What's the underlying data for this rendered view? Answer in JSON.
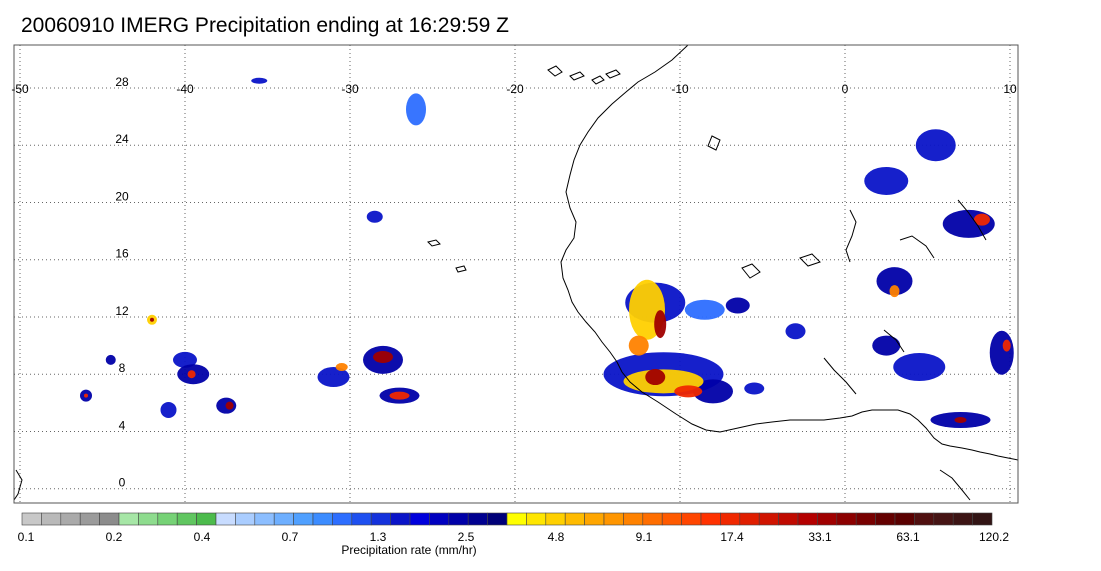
{
  "title": "20060910 IMERG Precipitation ending at 16:29:59 Z",
  "map": {
    "lon_range": [
      -50,
      10
    ],
    "lat_range": [
      -1,
      31
    ],
    "lon_ticks": [
      "-50",
      "-40",
      "-30",
      "-20",
      "-10",
      "0",
      "10"
    ],
    "lat_ticks": [
      "0",
      "4",
      "8",
      "12",
      "16",
      "20",
      "24",
      "28"
    ],
    "lon_tick_values": [
      -50,
      -40,
      -30,
      -20,
      -10,
      0,
      10
    ],
    "lat_tick_values": [
      0,
      4,
      8,
      12,
      16,
      20,
      24,
      28
    ],
    "gridlines": true,
    "coastline_color": "#000000"
  },
  "colorbar": {
    "title": "Precipitation rate (mm/hr)",
    "labels": [
      "0.1",
      "0.2",
      "0.4",
      "0.7",
      "1.3",
      "2.5",
      "4.8",
      "9.1",
      "17.4",
      "33.1",
      "63.1",
      "120.2"
    ],
    "colors": [
      "#c8c8c8",
      "#b9b9b9",
      "#aaaaaa",
      "#9b9b9b",
      "#8c8c8c",
      "#a6e6a6",
      "#8edc8e",
      "#76d276",
      "#60c660",
      "#4cbb4c",
      "#c8dcff",
      "#aacdff",
      "#8cbeff",
      "#6eafff",
      "#50a0ff",
      "#3c8cff",
      "#2d6eff",
      "#1e50f0",
      "#1432dc",
      "#0a14c8",
      "#0000dc",
      "#0000c0",
      "#0000a8",
      "#000090",
      "#000078",
      "#ffff00",
      "#ffe600",
      "#ffd000",
      "#ffbb00",
      "#ffa600",
      "#ff9600",
      "#ff8200",
      "#ff6e00",
      "#ff5a00",
      "#ff4600",
      "#ff3200",
      "#f02800",
      "#e01e00",
      "#d01400",
      "#c00a00",
      "#b40000",
      "#a00000",
      "#8c0000",
      "#780000",
      "#640000",
      "#5a0000",
      "#501010",
      "#461414",
      "#3c1414",
      "#321414"
    ]
  },
  "precip_cells": [
    {
      "lon": -11.5,
      "lat": 13.0,
      "rx": 30,
      "ry": 20,
      "level": 4
    },
    {
      "lon": -12.0,
      "lat": 12.5,
      "rx": 18,
      "ry": 30,
      "level": 6
    },
    {
      "lon": -11.2,
      "lat": 11.5,
      "rx": 6,
      "ry": 14,
      "level": 9
    },
    {
      "lon": -12.5,
      "lat": 10.0,
      "rx": 10,
      "ry": 10,
      "level": 7
    },
    {
      "lon": -11.0,
      "lat": 8.0,
      "rx": 60,
      "ry": 22,
      "level": 4
    },
    {
      "lon": -11.0,
      "lat": 7.5,
      "rx": 40,
      "ry": 12,
      "level": 6
    },
    {
      "lon": -11.5,
      "lat": 7.8,
      "rx": 10,
      "ry": 8,
      "level": 9
    },
    {
      "lon": -9.5,
      "lat": 6.8,
      "rx": 14,
      "ry": 6,
      "level": 8
    },
    {
      "lon": -8.0,
      "lat": 6.8,
      "rx": 20,
      "ry": 12,
      "level": 5
    },
    {
      "lon": -6.5,
      "lat": 12.8,
      "rx": 12,
      "ry": 8,
      "level": 5
    },
    {
      "lon": -8.5,
      "lat": 12.5,
      "rx": 20,
      "ry": 10,
      "level": 3
    },
    {
      "lon": 5.5,
      "lat": 24.0,
      "rx": 20,
      "ry": 16,
      "level": 4
    },
    {
      "lon": 2.5,
      "lat": 21.5,
      "rx": 22,
      "ry": 14,
      "level": 4
    },
    {
      "lon": 7.5,
      "lat": 18.5,
      "rx": 26,
      "ry": 14,
      "level": 5
    },
    {
      "lon": 8.3,
      "lat": 18.8,
      "rx": 8,
      "ry": 6,
      "level": 8
    },
    {
      "lon": 3.0,
      "lat": 14.5,
      "rx": 18,
      "ry": 14,
      "level": 5
    },
    {
      "lon": 3.0,
      "lat": 13.8,
      "rx": 5,
      "ry": 6,
      "level": 7
    },
    {
      "lon": 2.5,
      "lat": 10.0,
      "rx": 14,
      "ry": 10,
      "level": 5
    },
    {
      "lon": 4.5,
      "lat": 8.5,
      "rx": 26,
      "ry": 14,
      "level": 4
    },
    {
      "lon": 9.5,
      "lat": 9.5,
      "rx": 12,
      "ry": 22,
      "level": 5
    },
    {
      "lon": 9.8,
      "lat": 10.0,
      "rx": 4,
      "ry": 6,
      "level": 8
    },
    {
      "lon": 7.0,
      "lat": 4.8,
      "rx": 30,
      "ry": 8,
      "level": 5
    },
    {
      "lon": 7.0,
      "lat": 4.8,
      "rx": 6,
      "ry": 3,
      "level": 9
    },
    {
      "lon": -28.0,
      "lat": 9.0,
      "rx": 20,
      "ry": 14,
      "level": 5
    },
    {
      "lon": -28.0,
      "lat": 9.2,
      "rx": 10,
      "ry": 6,
      "level": 9
    },
    {
      "lon": -27.0,
      "lat": 6.5,
      "rx": 20,
      "ry": 8,
      "level": 5
    },
    {
      "lon": -27.0,
      "lat": 6.5,
      "rx": 10,
      "ry": 4,
      "level": 8
    },
    {
      "lon": -31.0,
      "lat": 7.8,
      "rx": 16,
      "ry": 10,
      "level": 4
    },
    {
      "lon": -30.5,
      "lat": 8.5,
      "rx": 6,
      "ry": 4,
      "level": 7
    },
    {
      "lon": -40.0,
      "lat": 9.0,
      "rx": 12,
      "ry": 8,
      "level": 4
    },
    {
      "lon": -39.5,
      "lat": 8.0,
      "rx": 16,
      "ry": 10,
      "level": 5
    },
    {
      "lon": -39.6,
      "lat": 8.0,
      "rx": 4,
      "ry": 4,
      "level": 8
    },
    {
      "lon": -37.5,
      "lat": 5.8,
      "rx": 10,
      "ry": 8,
      "level": 5
    },
    {
      "lon": -37.3,
      "lat": 5.8,
      "rx": 4,
      "ry": 4,
      "level": 9
    },
    {
      "lon": -41.0,
      "lat": 5.5,
      "rx": 8,
      "ry": 8,
      "level": 4
    },
    {
      "lon": -46.0,
      "lat": 6.5,
      "rx": 6,
      "ry": 6,
      "level": 5
    },
    {
      "lon": -46.0,
      "lat": 6.5,
      "rx": 2,
      "ry": 2,
      "level": 8
    },
    {
      "lon": -42.0,
      "lat": 11.8,
      "rx": 5,
      "ry": 5,
      "level": 6
    },
    {
      "lon": -42.0,
      "lat": 11.8,
      "rx": 2,
      "ry": 2,
      "level": 9
    },
    {
      "lon": -26.0,
      "lat": 26.5,
      "rx": 10,
      "ry": 16,
      "level": 3
    },
    {
      "lon": -35.5,
      "lat": 28.5,
      "rx": 8,
      "ry": 3,
      "level": 4
    },
    {
      "lon": -28.5,
      "lat": 19.0,
      "rx": 8,
      "ry": 6,
      "level": 4
    },
    {
      "lon": -3.0,
      "lat": 11.0,
      "rx": 10,
      "ry": 8,
      "level": 4
    },
    {
      "lon": -5.5,
      "lat": 7.0,
      "rx": 10,
      "ry": 6,
      "level": 4
    },
    {
      "lon": -44.5,
      "lat": 9.0,
      "rx": 5,
      "ry": 5,
      "level": 5
    }
  ]
}
